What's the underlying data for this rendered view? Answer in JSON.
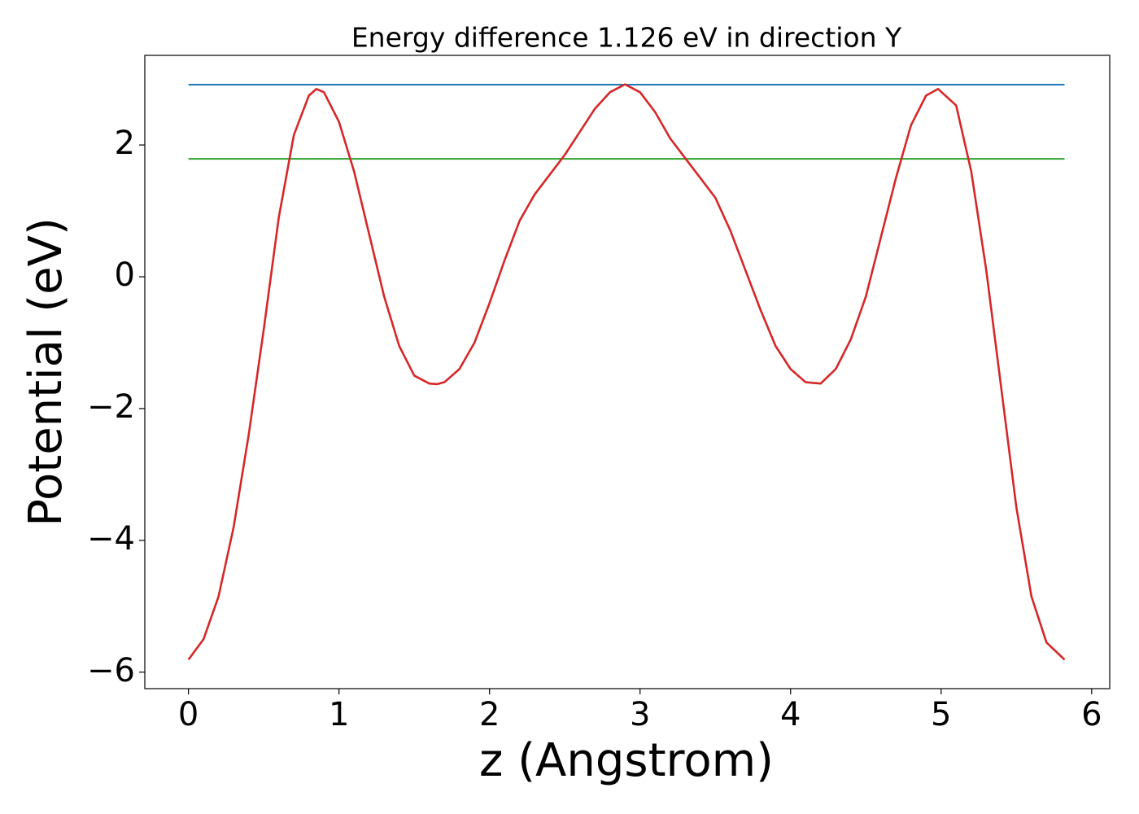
{
  "chart_data": {
    "type": "line",
    "title": "Energy difference 1.126 eV in direction Y",
    "xlabel": "z (Angstrom)",
    "ylabel": "Potential (eV)",
    "x": [
      0,
      0.1,
      0.2,
      0.3,
      0.4,
      0.5,
      0.6,
      0.7,
      0.8,
      0.85,
      0.9,
      1.0,
      1.1,
      1.2,
      1.3,
      1.4,
      1.5,
      1.6,
      1.65,
      1.7,
      1.8,
      1.9,
      2.0,
      2.1,
      2.2,
      2.3,
      2.4,
      2.5,
      2.6,
      2.7,
      2.8,
      2.9,
      3.0,
      3.1,
      3.2,
      3.3,
      3.4,
      3.5,
      3.6,
      3.7,
      3.8,
      3.9,
      4.0,
      4.1,
      4.2,
      4.3,
      4.4,
      4.5,
      4.6,
      4.7,
      4.8,
      4.9,
      4.98,
      5.1,
      5.2,
      5.3,
      5.4,
      5.5,
      5.6,
      5.7,
      5.82
    ],
    "series": [
      {
        "color": "#d62728",
        "values": [
          -5.81,
          -5.5,
          -4.85,
          -3.8,
          -2.4,
          -0.8,
          0.9,
          2.15,
          2.75,
          2.85,
          2.8,
          2.35,
          1.6,
          0.65,
          -0.3,
          -1.05,
          -1.5,
          -1.62,
          -1.63,
          -1.6,
          -1.4,
          -1.0,
          -0.4,
          0.25,
          0.85,
          1.25,
          1.55,
          1.85,
          2.2,
          2.55,
          2.8,
          2.92,
          2.8,
          2.5,
          2.1,
          1.8,
          1.5,
          1.2,
          0.7,
          0.1,
          -0.5,
          -1.05,
          -1.4,
          -1.6,
          -1.62,
          -1.4,
          -0.95,
          -0.3,
          0.6,
          1.5,
          2.3,
          2.75,
          2.85,
          2.6,
          1.6,
          0.1,
          -1.7,
          -3.5,
          -4.85,
          -5.55,
          -5.81
        ]
      }
    ],
    "hlines": [
      {
        "y": 2.916,
        "xmin": 0,
        "xmax": 5.82,
        "color": "#1f77b4"
      },
      {
        "y": 1.79,
        "xmin": 0,
        "xmax": 5.82,
        "color": "#2ca02c"
      }
    ],
    "xlim": [
      -0.29,
      6.12
    ],
    "ylim": [
      -6.25,
      3.36
    ],
    "xticks": [
      0,
      1,
      2,
      3,
      4,
      5,
      6
    ],
    "yticks": [
      {
        "value": -6,
        "label": "−6"
      },
      {
        "value": -4,
        "label": "−4"
      },
      {
        "value": -2,
        "label": "−2"
      },
      0,
      2
    ]
  }
}
